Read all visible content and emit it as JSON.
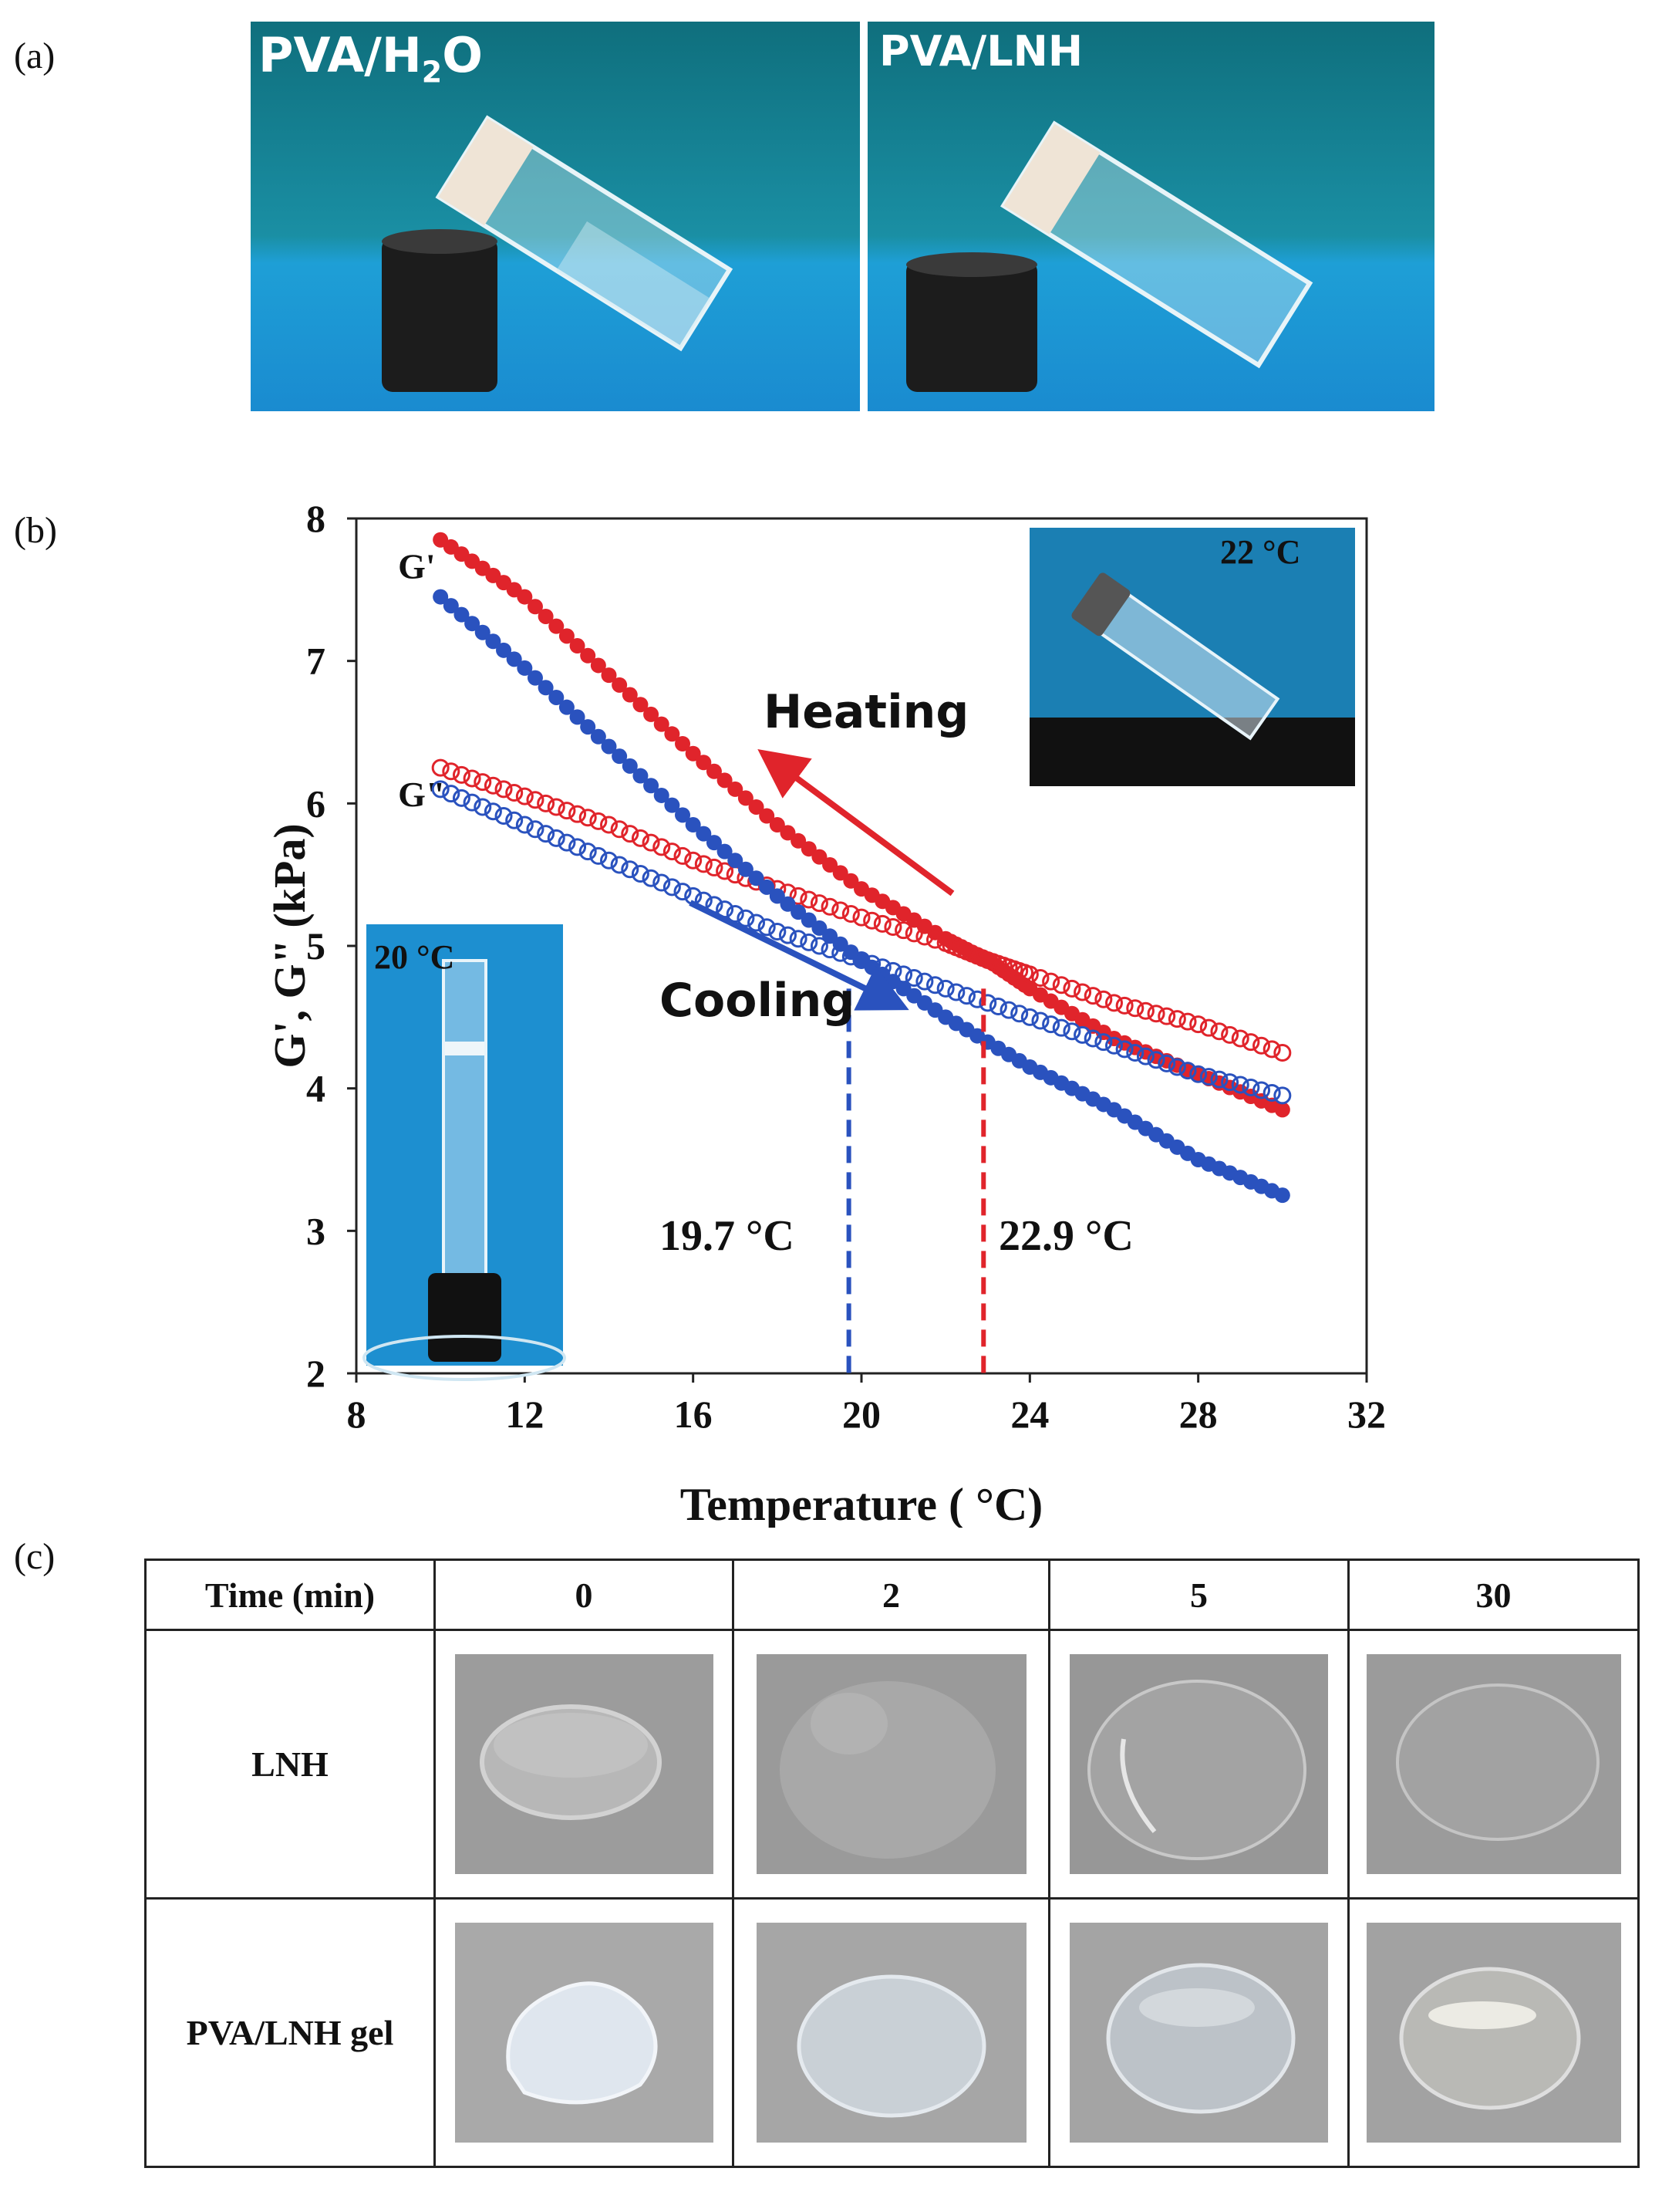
{
  "panel_a": {
    "label": "(a)",
    "photo_left": {
      "title_main": "PVA/H",
      "title_sub": "2",
      "title_end": "O"
    },
    "photo_right": {
      "title": "PVA/LNH"
    }
  },
  "panel_b": {
    "label": "(b)",
    "chart_data": {
      "type": "scatter",
      "xlabel": "Temperature ( °C)",
      "ylabel": "G', G\" (kPa)",
      "xlim": [
        8,
        32
      ],
      "ylim": [
        2,
        8
      ],
      "x_ticks": [
        "8",
        "12",
        "16",
        "20",
        "24",
        "28",
        "32"
      ],
      "y_ticks": [
        "2",
        "3",
        "4",
        "5",
        "6",
        "7",
        "8"
      ],
      "series": [
        {
          "curve_label": "G'",
          "color": "#e0242b",
          "filled": true,
          "x": [
            10,
            12,
            14,
            16,
            18,
            20,
            22,
            23,
            24,
            26,
            28,
            30
          ],
          "y": [
            7.85,
            7.45,
            6.9,
            6.35,
            5.85,
            5.4,
            5.05,
            4.9,
            4.7,
            4.35,
            4.1,
            3.85
          ]
        },
        {
          "curve_label": "G\"",
          "color": "#e0242b",
          "filled": false,
          "x": [
            10,
            12,
            14,
            16,
            18,
            20,
            22,
            23,
            24,
            26,
            28,
            30
          ],
          "y": [
            6.25,
            6.05,
            5.85,
            5.6,
            5.4,
            5.2,
            5.02,
            4.9,
            4.8,
            4.6,
            4.45,
            4.25
          ]
        },
        {
          "color": "#2a52be",
          "filled": true,
          "x": [
            10,
            12,
            14,
            16,
            18,
            20,
            22,
            24,
            26,
            28,
            30
          ],
          "y": [
            7.45,
            6.95,
            6.4,
            5.85,
            5.35,
            4.9,
            4.5,
            4.15,
            3.85,
            3.5,
            3.25
          ]
        },
        {
          "color": "#2a52be",
          "filled": false,
          "x": [
            10,
            12,
            14,
            16,
            18,
            20,
            22,
            24,
            26,
            28,
            30
          ],
          "y": [
            6.1,
            5.85,
            5.6,
            5.35,
            5.1,
            4.9,
            4.7,
            4.5,
            4.3,
            4.1,
            3.95
          ]
        }
      ],
      "annotations": {
        "heating": "Heating",
        "cooling": "Cooling",
        "t_cool": "19.7 °C",
        "t_heat": "22.9 °C"
      },
      "vlines": [
        {
          "x": 19.7,
          "color": "#2a52be"
        },
        {
          "x": 22.9,
          "color": "#e0242b"
        }
      ],
      "inset_left": "20 °C",
      "inset_right": "22 °C"
    }
  },
  "panel_c": {
    "label": "(c)",
    "header": [
      "Time (min)",
      "0",
      "2",
      "5",
      "30"
    ],
    "rows": [
      "LNH",
      "PVA/LNH gel"
    ]
  }
}
